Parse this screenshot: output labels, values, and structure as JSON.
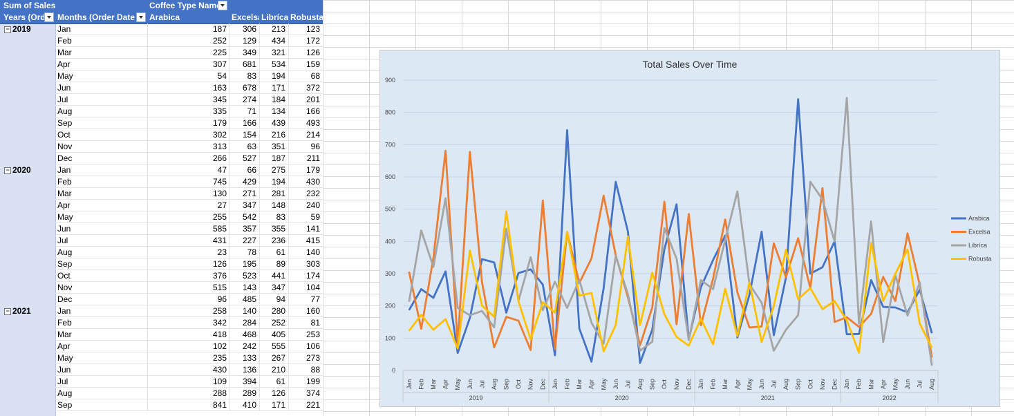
{
  "pivot": {
    "corner_label": "Sum of Sales",
    "columns_field": "Coffee Type Name",
    "rows_header_years": "Years (Ord",
    "rows_header_months": "Months (Order Date",
    "col_headers": [
      "Arabica",
      "Excelsa",
      "Libríca",
      "Robusta"
    ],
    "years": [
      {
        "label": "2019",
        "rows": [
          {
            "month": "Jan",
            "v": [
              "187",
              "306",
              "213",
              "123"
            ]
          },
          {
            "month": "Feb",
            "v": [
              "252",
              "129",
              "434",
              "172"
            ]
          },
          {
            "month": "Mar",
            "v": [
              "225",
              "349",
              "321",
              "126"
            ]
          },
          {
            "month": "Apr",
            "v": [
              "307",
              "681",
              "534",
              "159"
            ]
          },
          {
            "month": "May",
            "v": [
              "54",
              "83",
              "194",
              "68"
            ]
          },
          {
            "month": "Jun",
            "v": [
              "163",
              "678",
              "171",
              "372"
            ]
          },
          {
            "month": "Jul",
            "v": [
              "345",
              "274",
              "184",
              "201"
            ]
          },
          {
            "month": "Aug",
            "v": [
              "335",
              "71",
              "134",
              "166"
            ]
          },
          {
            "month": "Sep",
            "v": [
              "179",
              "166",
              "439",
              "493"
            ]
          },
          {
            "month": "Oct",
            "v": [
              "302",
              "154",
              "216",
              "214"
            ]
          },
          {
            "month": "Nov",
            "v": [
              "313",
              "63",
              "351",
              "96"
            ]
          },
          {
            "month": "Dec",
            "v": [
              "266",
              "527",
              "187",
              "211"
            ]
          }
        ]
      },
      {
        "label": "2020",
        "rows": [
          {
            "month": "Jan",
            "v": [
              "47",
              "66",
              "275",
              "179"
            ]
          },
          {
            "month": "Feb",
            "v": [
              "745",
              "429",
              "194",
              "430"
            ]
          },
          {
            "month": "Mar",
            "v": [
              "130",
              "271",
              "281",
              "232"
            ]
          },
          {
            "month": "Apr",
            "v": [
              "27",
              "347",
              "148",
              "240"
            ]
          },
          {
            "month": "May",
            "v": [
              "255",
              "542",
              "83",
              "59"
            ]
          },
          {
            "month": "Jun",
            "v": [
              "585",
              "357",
              "355",
              "141"
            ]
          },
          {
            "month": "Jul",
            "v": [
              "431",
              "227",
              "236",
              "415"
            ]
          },
          {
            "month": "Aug",
            "v": [
              "23",
              "78",
              "61",
              "140"
            ]
          },
          {
            "month": "Sep",
            "v": [
              "126",
              "195",
              "89",
              "303"
            ]
          },
          {
            "month": "Oct",
            "v": [
              "376",
              "523",
              "441",
              "174"
            ]
          },
          {
            "month": "Nov",
            "v": [
              "515",
              "143",
              "347",
              "104"
            ]
          },
          {
            "month": "Dec",
            "v": [
              "96",
              "485",
              "94",
              "77"
            ]
          }
        ]
      },
      {
        "label": "2021",
        "rows": [
          {
            "month": "Jan",
            "v": [
              "258",
              "140",
              "280",
              "160"
            ]
          },
          {
            "month": "Feb",
            "v": [
              "342",
              "284",
              "252",
              "81"
            ]
          },
          {
            "month": "Mar",
            "v": [
              "418",
              "468",
              "405",
              "253"
            ]
          },
          {
            "month": "Apr",
            "v": [
              "102",
              "242",
              "555",
              "106"
            ]
          },
          {
            "month": "May",
            "v": [
              "235",
              "133",
              "267",
              "273"
            ]
          },
          {
            "month": "Jun",
            "v": [
              "430",
              "136",
              "210",
              "88"
            ]
          },
          {
            "month": "Jul",
            "v": [
              "109",
              "394",
              "61",
              "199"
            ]
          },
          {
            "month": "Aug",
            "v": [
              "288",
              "289",
              "126",
              "374"
            ]
          },
          {
            "month": "Sep",
            "v": [
              "841",
              "410",
              "171",
              "221"
            ]
          }
        ]
      }
    ]
  },
  "chart_data": {
    "type": "line",
    "title": "Total Sales Over Time",
    "ylim": [
      0,
      900
    ],
    "yticks": [
      "0",
      "100",
      "200",
      "300",
      "400",
      "500",
      "600",
      "700",
      "800",
      "900"
    ],
    "grid": true,
    "legend_position": "right",
    "x_months": [
      "Jan",
      "Feb",
      "Mar",
      "Apr",
      "May",
      "Jun",
      "Jul",
      "Aug",
      "Sep",
      "Oct",
      "Nov",
      "Dec",
      "Jan",
      "Feb",
      "Mar",
      "Apr",
      "May",
      "Jun",
      "Jul",
      "Aug",
      "Sep",
      "Oct",
      "Nov",
      "Dec",
      "Jan",
      "Feb",
      "Mar",
      "Apr",
      "May",
      "Jun",
      "Jul",
      "Aug",
      "Sep",
      "Oct",
      "Nov",
      "Dec",
      "Jan",
      "Feb",
      "Mar",
      "Apr",
      "May",
      "Jun",
      "Jul",
      "Aug"
    ],
    "x_years": [
      {
        "label": "2019",
        "count": 12
      },
      {
        "label": "2020",
        "count": 12
      },
      {
        "label": "2021",
        "count": 12
      },
      {
        "label": "2022",
        "count": 8
      }
    ],
    "series": [
      {
        "name": "Arabica",
        "color": "#4472c4",
        "values": [
          187,
          252,
          225,
          307,
          54,
          163,
          345,
          335,
          179,
          302,
          313,
          266,
          47,
          745,
          130,
          27,
          255,
          585,
          431,
          23,
          126,
          376,
          515,
          96,
          258,
          342,
          418,
          102,
          235,
          430,
          109,
          288,
          841,
          300,
          320,
          400,
          112,
          113,
          280,
          197,
          195,
          180,
          250,
          115
        ]
      },
      {
        "name": "Excelsa",
        "color": "#ed7d31",
        "values": [
          306,
          129,
          349,
          681,
          83,
          678,
          274,
          71,
          166,
          154,
          63,
          527,
          66,
          429,
          271,
          347,
          542,
          357,
          227,
          78,
          195,
          523,
          143,
          485,
          140,
          284,
          468,
          242,
          133,
          136,
          394,
          289,
          410,
          255,
          565,
          150,
          165,
          135,
          175,
          290,
          215,
          425,
          265,
          40
        ]
      },
      {
        "name": "Libríca",
        "color": "#a5a5a5",
        "values": [
          213,
          434,
          321,
          534,
          194,
          171,
          184,
          134,
          439,
          216,
          351,
          187,
          275,
          194,
          281,
          148,
          83,
          355,
          236,
          61,
          89,
          441,
          347,
          94,
          280,
          252,
          405,
          555,
          267,
          210,
          61,
          126,
          171,
          585,
          530,
          400,
          845,
          145,
          462,
          88,
          295,
          170,
          273,
          15
        ]
      },
      {
        "name": "Robusta",
        "color": "#ffc000",
        "values": [
          123,
          172,
          126,
          159,
          68,
          372,
          201,
          166,
          493,
          214,
          96,
          211,
          179,
          430,
          232,
          240,
          59,
          141,
          415,
          140,
          303,
          174,
          104,
          77,
          160,
          81,
          253,
          106,
          273,
          88,
          199,
          374,
          221,
          255,
          190,
          215,
          155,
          55,
          395,
          215,
          300,
          375,
          145,
          70
        ]
      }
    ]
  }
}
